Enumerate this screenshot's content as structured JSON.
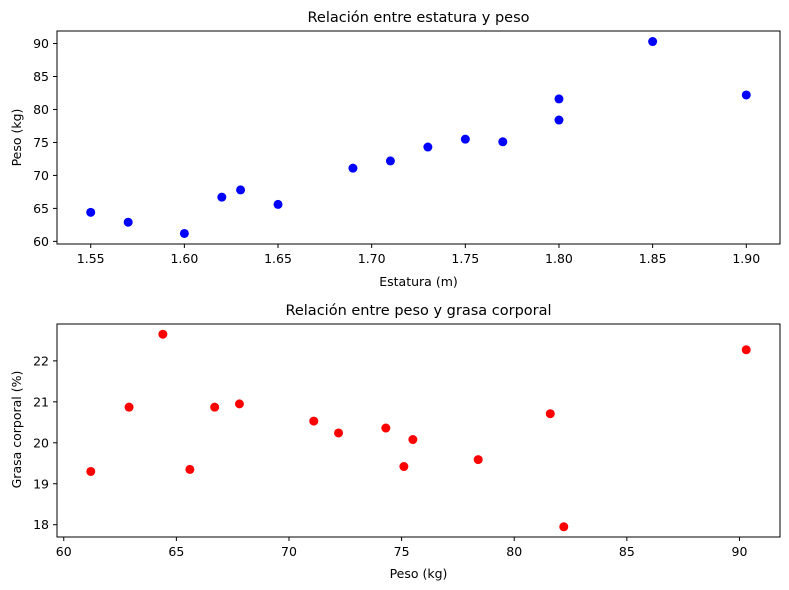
{
  "chart_data": [
    {
      "type": "scatter",
      "title": "Relación entre estatura y peso",
      "xlabel": "Estatura (m)",
      "ylabel": "Peso (kg)",
      "xlim": [
        1.532,
        1.918
      ],
      "ylim": [
        59.6,
        91.9
      ],
      "xticks": [
        1.55,
        1.6,
        1.65,
        1.7,
        1.75,
        1.8,
        1.85,
        1.9
      ],
      "xtick_labels": [
        "1.55",
        "1.60",
        "1.65",
        "1.70",
        "1.75",
        "1.80",
        "1.85",
        "1.90"
      ],
      "yticks": [
        60,
        65,
        70,
        75,
        80,
        85,
        90
      ],
      "ytick_labels": [
        "60",
        "65",
        "70",
        "75",
        "80",
        "85",
        "90"
      ],
      "grid": false,
      "color": "#0000ff",
      "points": [
        {
          "x": 1.55,
          "y": 64.4
        },
        {
          "x": 1.57,
          "y": 62.9
        },
        {
          "x": 1.6,
          "y": 61.2
        },
        {
          "x": 1.62,
          "y": 66.7
        },
        {
          "x": 1.63,
          "y": 67.8
        },
        {
          "x": 1.65,
          "y": 65.6
        },
        {
          "x": 1.69,
          "y": 71.1
        },
        {
          "x": 1.71,
          "y": 72.2
        },
        {
          "x": 1.73,
          "y": 74.3
        },
        {
          "x": 1.75,
          "y": 75.5
        },
        {
          "x": 1.77,
          "y": 75.1
        },
        {
          "x": 1.8,
          "y": 78.4
        },
        {
          "x": 1.8,
          "y": 81.6
        },
        {
          "x": 1.85,
          "y": 90.3
        },
        {
          "x": 1.9,
          "y": 82.2
        }
      ]
    },
    {
      "type": "scatter",
      "title": "Relación entre peso y grasa corporal",
      "xlabel": "Peso (kg)",
      "ylabel": "Grasa corporal (%)",
      "xlim": [
        59.7,
        91.8
      ],
      "ylim": [
        17.7,
        22.9
      ],
      "xticks": [
        60,
        65,
        70,
        75,
        80,
        85,
        90
      ],
      "xtick_labels": [
        "60",
        "65",
        "70",
        "75",
        "80",
        "85",
        "90"
      ],
      "yticks": [
        18,
        19,
        20,
        21,
        22
      ],
      "ytick_labels": [
        "18",
        "19",
        "20",
        "21",
        "22"
      ],
      "grid": false,
      "color": "#ff0000",
      "points": [
        {
          "x": 61.2,
          "y": 19.3
        },
        {
          "x": 62.9,
          "y": 20.87
        },
        {
          "x": 64.4,
          "y": 22.65
        },
        {
          "x": 65.6,
          "y": 19.35
        },
        {
          "x": 66.7,
          "y": 20.87
        },
        {
          "x": 67.8,
          "y": 20.95
        },
        {
          "x": 71.1,
          "y": 20.53
        },
        {
          "x": 72.2,
          "y": 20.24
        },
        {
          "x": 74.3,
          "y": 20.36
        },
        {
          "x": 75.1,
          "y": 19.42
        },
        {
          "x": 75.5,
          "y": 20.08
        },
        {
          "x": 78.4,
          "y": 19.59
        },
        {
          "x": 81.6,
          "y": 20.71
        },
        {
          "x": 82.2,
          "y": 17.95
        },
        {
          "x": 90.3,
          "y": 22.27
        }
      ]
    }
  ]
}
